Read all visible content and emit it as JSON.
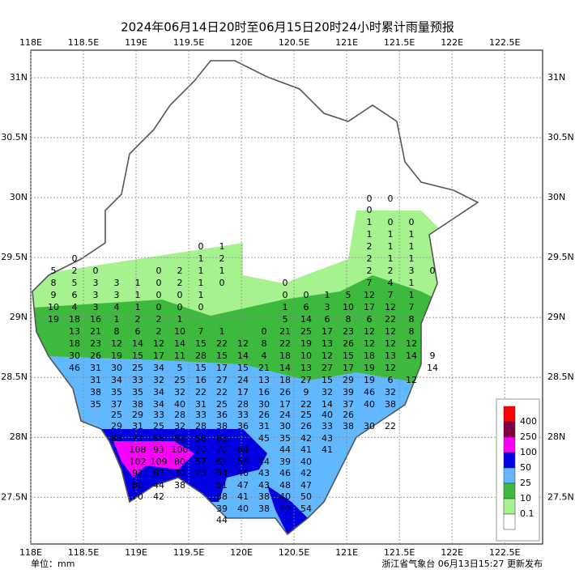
{
  "title": "2024年06月14日20时至06月15日20时24小时累计雨量预报",
  "map": {
    "lonlim": [
      118,
      122.86
    ],
    "latlim": [
      27.11,
      31.23
    ],
    "lon_ticks": [
      {
        "value": 118,
        "label": "118E"
      },
      {
        "value": 118.5,
        "label": "118.5E"
      },
      {
        "value": 119,
        "label": "119E"
      },
      {
        "value": 119.5,
        "label": "119.5E"
      },
      {
        "value": 120,
        "label": "120E"
      },
      {
        "value": 120.5,
        "label": "120.5E"
      },
      {
        "value": 121,
        "label": "121E"
      },
      {
        "value": 121.5,
        "label": "121.5E"
      },
      {
        "value": 122,
        "label": "122E"
      },
      {
        "value": 122.5,
        "label": "122.5E"
      }
    ],
    "lat_ticks": [
      {
        "value": 31,
        "label": "31N"
      },
      {
        "value": 30.5,
        "label": "30.5N"
      },
      {
        "value": 30,
        "label": "30N"
      },
      {
        "value": 29.5,
        "label": "29.5N"
      },
      {
        "value": 29,
        "label": "29N"
      },
      {
        "value": 28.5,
        "label": "28.5N"
      },
      {
        "value": 28,
        "label": "28N"
      },
      {
        "value": 27.5,
        "label": "27.5N"
      }
    ],
    "grid": true
  },
  "legend": {
    "levels": [
      {
        "value": 400,
        "color": "#ff0000"
      },
      {
        "value": 250,
        "color": "#800040"
      },
      {
        "value": 100,
        "color": "#fa00fa"
      },
      {
        "value": 50,
        "color": "#0000e1"
      },
      {
        "value": 25,
        "color": "#61b8ff"
      },
      {
        "value": 10,
        "color": "#3dba3d"
      },
      {
        "value": 0.1,
        "color": "#a6f28f"
      }
    ],
    "below_color": "#ffffff"
  },
  "station_rows": [
    [
      0,
      0
    ],
    [
      0
    ],
    [
      1,
      0,
      0
    ],
    [
      1,
      1,
      1
    ],
    [
      0,
      1,
      2,
      1,
      1
    ],
    [
      0,
      1,
      2,
      2,
      1,
      1
    ],
    [
      5,
      2,
      0,
      0,
      2,
      1,
      1,
      2,
      2,
      3,
      0
    ],
    [
      8,
      5,
      3,
      3,
      1,
      0,
      2,
      1,
      0,
      0,
      7,
      4,
      1
    ],
    [
      9,
      6,
      3,
      3,
      1,
      0,
      0,
      1,
      0,
      0,
      1,
      5,
      12,
      7,
      1
    ],
    [
      10,
      4,
      3,
      4,
      1,
      0,
      0,
      0,
      1,
      6,
      3,
      10,
      17,
      12,
      7
    ],
    [
      19,
      18,
      16,
      1,
      2,
      2,
      1,
      5,
      14,
      6,
      8,
      6,
      22,
      8
    ],
    [
      13,
      21,
      8,
      6,
      2,
      10,
      7,
      1,
      0,
      21,
      25,
      17,
      23,
      12,
      12,
      8
    ],
    [
      18,
      23,
      12,
      14,
      12,
      14,
      15,
      22,
      12,
      8,
      22,
      19,
      13,
      26,
      12,
      12,
      12
    ],
    [
      30,
      26,
      19,
      15,
      17,
      11,
      28,
      15,
      14,
      4,
      18,
      10,
      12,
      15,
      18,
      13,
      14,
      9
    ],
    [
      46,
      31,
      30,
      25,
      34,
      5,
      15,
      17,
      15,
      21,
      14,
      13,
      27,
      17,
      19,
      12,
      14
    ],
    [
      31,
      34,
      33,
      32,
      25,
      16,
      27,
      24,
      13,
      18,
      27,
      15,
      29,
      19,
      6,
      12
    ],
    [
      38,
      35,
      35,
      34,
      32,
      22,
      22,
      17,
      16,
      26,
      9,
      32,
      39,
      46,
      32
    ],
    [
      35,
      37,
      38,
      34,
      40,
      31,
      25,
      28,
      30,
      17,
      22,
      14,
      37,
      40,
      38
    ],
    [
      25,
      29,
      33,
      28,
      33,
      36,
      33,
      26,
      24,
      25,
      40,
      26
    ],
    [
      29,
      31,
      25,
      32,
      28,
      38,
      36,
      31,
      30,
      26,
      33,
      38,
      30,
      22
    ],
    [
      83,
      77,
      55,
      52,
      56,
      63,
      45,
      35,
      42,
      43
    ],
    [
      108,
      93,
      100,
      70,
      70,
      64,
      44,
      41,
      41
    ],
    [
      102,
      109,
      80,
      57,
      61,
      56,
      44,
      39,
      40
    ],
    [
      92,
      67,
      30,
      43,
      54,
      46,
      43,
      46,
      42
    ],
    [
      80,
      44,
      38,
      51,
      47,
      43,
      48,
      47
    ],
    [
      70,
      42,
      38,
      41,
      38,
      40,
      50
    ],
    [
      39,
      40,
      38,
      40,
      54
    ],
    [
      44
    ]
  ],
  "footer": {
    "unit": "单位：mm",
    "issuer": "浙江省气象台 06月13日15:27 更新发布"
  }
}
